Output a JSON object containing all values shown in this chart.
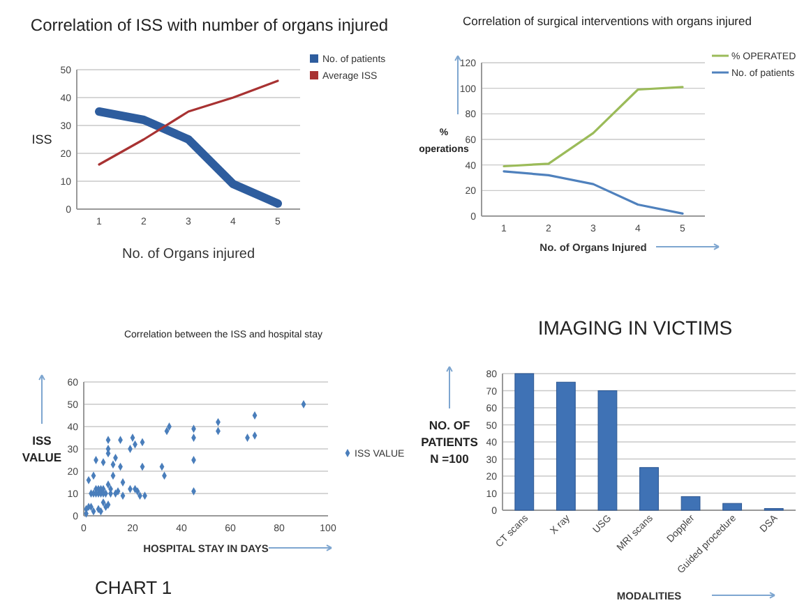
{
  "chart_data": [
    {
      "type": "line",
      "title": "Correlation of ISS with number of organs injured",
      "xlabel": "No. of Organs injured",
      "ylabel": "ISS",
      "categories": [
        "1",
        "2",
        "3",
        "4",
        "5"
      ],
      "series": [
        {
          "name": "No. of patients",
          "color": "#2e5d9e",
          "values": [
            35,
            32,
            25,
            9,
            2
          ]
        },
        {
          "name": "Average ISS",
          "color": "#a83232",
          "values": [
            16,
            25,
            35,
            40,
            46
          ]
        }
      ],
      "ylim": [
        0,
        50
      ],
      "yticks": [
        0,
        10,
        20,
        30,
        40,
        50
      ],
      "grid": "y",
      "legend": "top right"
    },
    {
      "type": "line",
      "title": "Correlation of surgical interventions with organs injured",
      "xlabel": "No. of Organs Injured",
      "ylabel": "% operations",
      "categories": [
        "1",
        "2",
        "3",
        "4",
        "5"
      ],
      "series": [
        {
          "name": "% OPERATED",
          "color": "#9bbb59",
          "values": [
            39,
            41,
            65,
            99,
            101
          ]
        },
        {
          "name": "No. of patients",
          "color": "#4f81bd",
          "values": [
            35,
            32,
            25,
            9,
            2
          ]
        }
      ],
      "ylim": [
        0,
        120
      ],
      "yticks": [
        0,
        20,
        40,
        60,
        80,
        100,
        120
      ],
      "grid": "y",
      "legend": "top right"
    },
    {
      "type": "scatter",
      "title": "Correlation between the ISS and hospital stay",
      "xlabel": "HOSPITAL STAY IN DAYS",
      "ylabel": "ISS VALUE",
      "annotations": [
        "CHART 1"
      ],
      "series": [
        {
          "name": "ISS VALUE",
          "color": "#4a7ebb",
          "x": [
            1,
            1,
            2,
            2,
            3,
            3,
            4,
            4,
            4,
            5,
            5,
            5,
            6,
            6,
            6,
            7,
            7,
            7,
            7,
            8,
            8,
            8,
            8,
            9,
            9,
            10,
            10,
            10,
            10,
            10,
            11,
            11,
            12,
            12,
            13,
            13,
            14,
            15,
            15,
            16,
            16,
            19,
            19,
            20,
            21,
            21,
            22,
            23,
            24,
            24,
            25,
            32,
            33,
            34,
            35,
            45,
            45,
            45,
            45,
            55,
            55,
            67,
            70,
            70,
            90
          ],
          "values": [
            1,
            3,
            4,
            16,
            4,
            10,
            18,
            10,
            2,
            12,
            25,
            10,
            12,
            10,
            3,
            11,
            10,
            12,
            2,
            12,
            10,
            24,
            6,
            10,
            4,
            34,
            30,
            28,
            14,
            5,
            12,
            10,
            18,
            23,
            26,
            10,
            11,
            34,
            22,
            9,
            15,
            30,
            12,
            35,
            32,
            12,
            11,
            9,
            33,
            22,
            9,
            22,
            18,
            38,
            40,
            39,
            35,
            25,
            11,
            42,
            38,
            35,
            45,
            36,
            50
          ]
        }
      ],
      "xlim": [
        0,
        100
      ],
      "xticks": [
        0,
        20,
        40,
        60,
        80,
        100
      ],
      "ylim": [
        0,
        60
      ],
      "yticks": [
        0,
        10,
        20,
        30,
        40,
        50,
        60
      ],
      "grid": "y",
      "legend": "right",
      "marker": "diamond"
    },
    {
      "type": "bar",
      "title": "IMAGING IN VICTIMS",
      "xlabel": "MODALITIES",
      "ylabel": "NO. OF PATIENTS N =100",
      "categories": [
        "CT scans",
        "X ray",
        "USG",
        "MRI scans",
        "Doppler",
        "Guided procedure",
        "DSA"
      ],
      "values": [
        80,
        75,
        70,
        25,
        8,
        4,
        1
      ],
      "color": "#3f72b5",
      "ylim": [
        0,
        80
      ],
      "yticks": [
        0,
        10,
        20,
        30,
        40,
        50,
        60,
        70,
        80
      ],
      "grid": "y"
    }
  ]
}
